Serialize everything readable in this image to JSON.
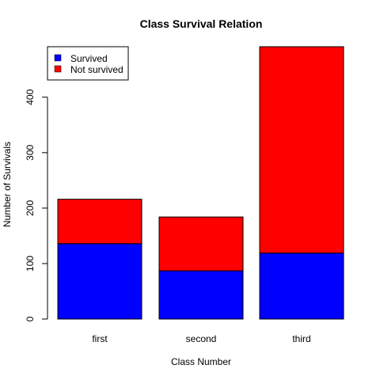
{
  "chart_data": {
    "type": "bar",
    "stacked": true,
    "title": "Class Survival Relation",
    "xlabel": "Class Number",
    "ylabel": "Number of Survivals",
    "categories": [
      "first",
      "second",
      "third"
    ],
    "series": [
      {
        "name": "Survived",
        "color": "#0000ff",
        "values": [
          136,
          87,
          119
        ]
      },
      {
        "name": "Not survived",
        "color": "#ff0000",
        "values": [
          80,
          97,
          372
        ]
      }
    ],
    "ylim": [
      0,
      491
    ],
    "yticks": [
      0,
      100,
      200,
      300,
      400
    ],
    "legend_position": "top-left",
    "grid": false
  }
}
